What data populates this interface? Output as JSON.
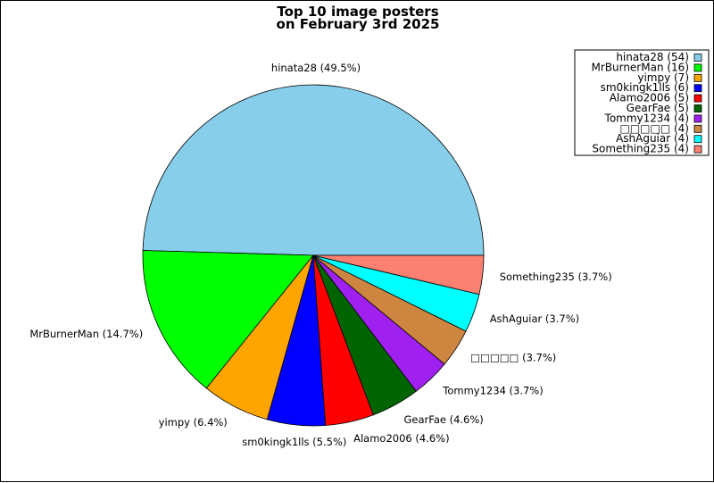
{
  "chart_data": {
    "type": "pie",
    "title_lines": [
      "Top 10 image posters",
      "on February 3rd 2025"
    ],
    "slices": [
      {
        "name": "hinata28",
        "value": 54,
        "percent_label": "hinata28 (49.5%)",
        "legend_label": "hinata28 (54)",
        "color": "#87ceeb"
      },
      {
        "name": "MrBurnerMan",
        "value": 16,
        "percent_label": "MrBurnerMan (14.7%)",
        "legend_label": "MrBurnerMan (16)",
        "color": "#00ff00"
      },
      {
        "name": "yimpy",
        "value": 7,
        "percent_label": "yimpy (6.4%)",
        "legend_label": "yimpy (7)",
        "color": "#ffa500"
      },
      {
        "name": "sm0kingk1lls",
        "value": 6,
        "percent_label": "sm0kingk1lls (5.5%)",
        "legend_label": "sm0kingk1lls (6)",
        "color": "#0000ff"
      },
      {
        "name": "Alamo2006",
        "value": 5,
        "percent_label": "Alamo2006 (4.6%)",
        "legend_label": "Alamo2006 (5)",
        "color": "#ff0000"
      },
      {
        "name": "GearFae",
        "value": 5,
        "percent_label": "GearFae (4.6%)",
        "legend_label": "GearFae (5)",
        "color": "#006400"
      },
      {
        "name": "Tommy1234",
        "value": 4,
        "percent_label": "Tommy1234 (3.7%)",
        "legend_label": "Tommy1234 (4)",
        "color": "#a020f0"
      },
      {
        "name": "□□□□□",
        "value": 4,
        "percent_label": "□□□□□ (3.7%)",
        "legend_label": "□□□□□ (4)",
        "color": "#cd853f"
      },
      {
        "name": "AshAguiar",
        "value": 4,
        "percent_label": "AshAguiar (3.7%)",
        "legend_label": "AshAguiar (4)",
        "color": "#00ffff"
      },
      {
        "name": "Something235",
        "value": 4,
        "percent_label": "Something235 (3.7%)",
        "legend_label": "Something235 (4)",
        "color": "#fa8072"
      }
    ],
    "start_angle_deg": 0,
    "direction": "counterclockwise",
    "legend_position": "top-right"
  }
}
